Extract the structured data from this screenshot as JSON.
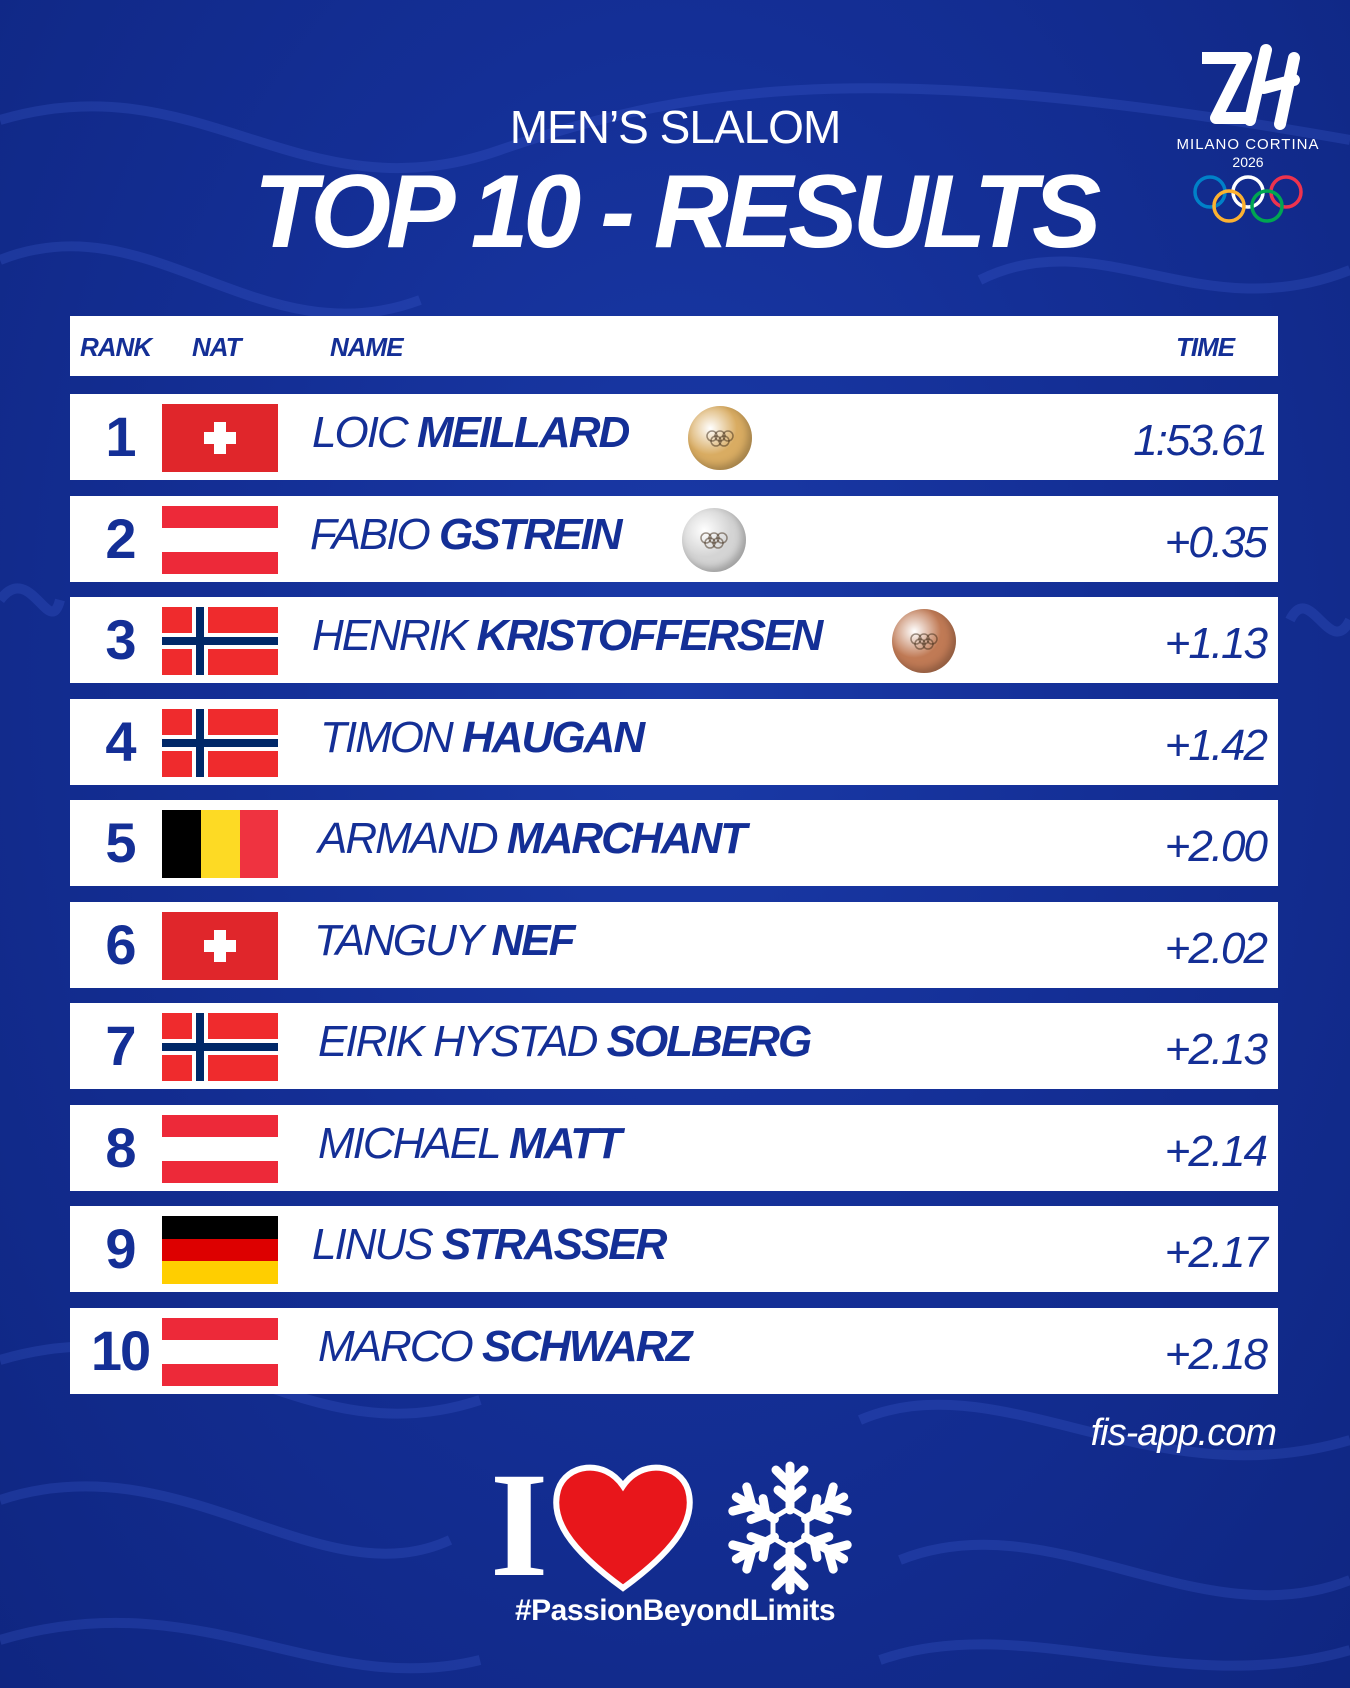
{
  "header": {
    "subtitle": "MEN’S SLALOM",
    "title": "TOP 10 - RESULTS"
  },
  "logo": {
    "line1": "MILANO CORTINA",
    "line2": "2026"
  },
  "table": {
    "columns": {
      "rank": "RANK",
      "nat": "NAT",
      "name": "NAME",
      "time": "TIME"
    },
    "rows": [
      {
        "rank": "1",
        "flag": "switzerland-flag",
        "first": "LOIC",
        "last": "MEILLARD",
        "medal": "gold",
        "time": "1:53.61"
      },
      {
        "rank": "2",
        "flag": "austria-flag",
        "first": "FABIO",
        "last": "GSTREIN",
        "medal": "silver",
        "time": "+0.35"
      },
      {
        "rank": "3",
        "flag": "norway-flag",
        "first": "HENRIK",
        "last": "KRISTOFFERSEN",
        "medal": "bronze",
        "time": "+1.13"
      },
      {
        "rank": "4",
        "flag": "norway-flag",
        "first": "TIMON",
        "last": "HAUGAN",
        "medal": "",
        "time": "+1.42"
      },
      {
        "rank": "5",
        "flag": "belgium-flag",
        "first": "ARMAND",
        "last": "MARCHANT",
        "medal": "",
        "time": "+2.00"
      },
      {
        "rank": "6",
        "flag": "switzerland-flag",
        "first": "TANGUY",
        "last": "NEF",
        "medal": "",
        "time": "+2.02"
      },
      {
        "rank": "7",
        "flag": "norway-flag",
        "first": "EIRIK HYSTAD",
        "last": "SOLBERG",
        "medal": "",
        "time": "+2.13"
      },
      {
        "rank": "8",
        "flag": "austria-flag",
        "first": "MICHAEL",
        "last": "MATT",
        "medal": "",
        "time": "+2.14"
      },
      {
        "rank": "9",
        "flag": "germany-flag",
        "first": "LINUS",
        "last": "STRASSER",
        "medal": "",
        "time": "+2.17"
      },
      {
        "rank": "10",
        "flag": "austria-flag",
        "first": "MARCO",
        "last": "SCHWARZ",
        "medal": "",
        "time": "+2.18"
      }
    ]
  },
  "footer": {
    "url": "fis-app.com",
    "letter": "I",
    "hashtag": "#PassionBeyondLimits"
  },
  "colors": {
    "background": "#142f96",
    "text_blue": "#142f96",
    "heart": "#e8161b",
    "gold": "#d9ac62",
    "silver": "#d4d4d4",
    "bronze": "#c07a55"
  }
}
